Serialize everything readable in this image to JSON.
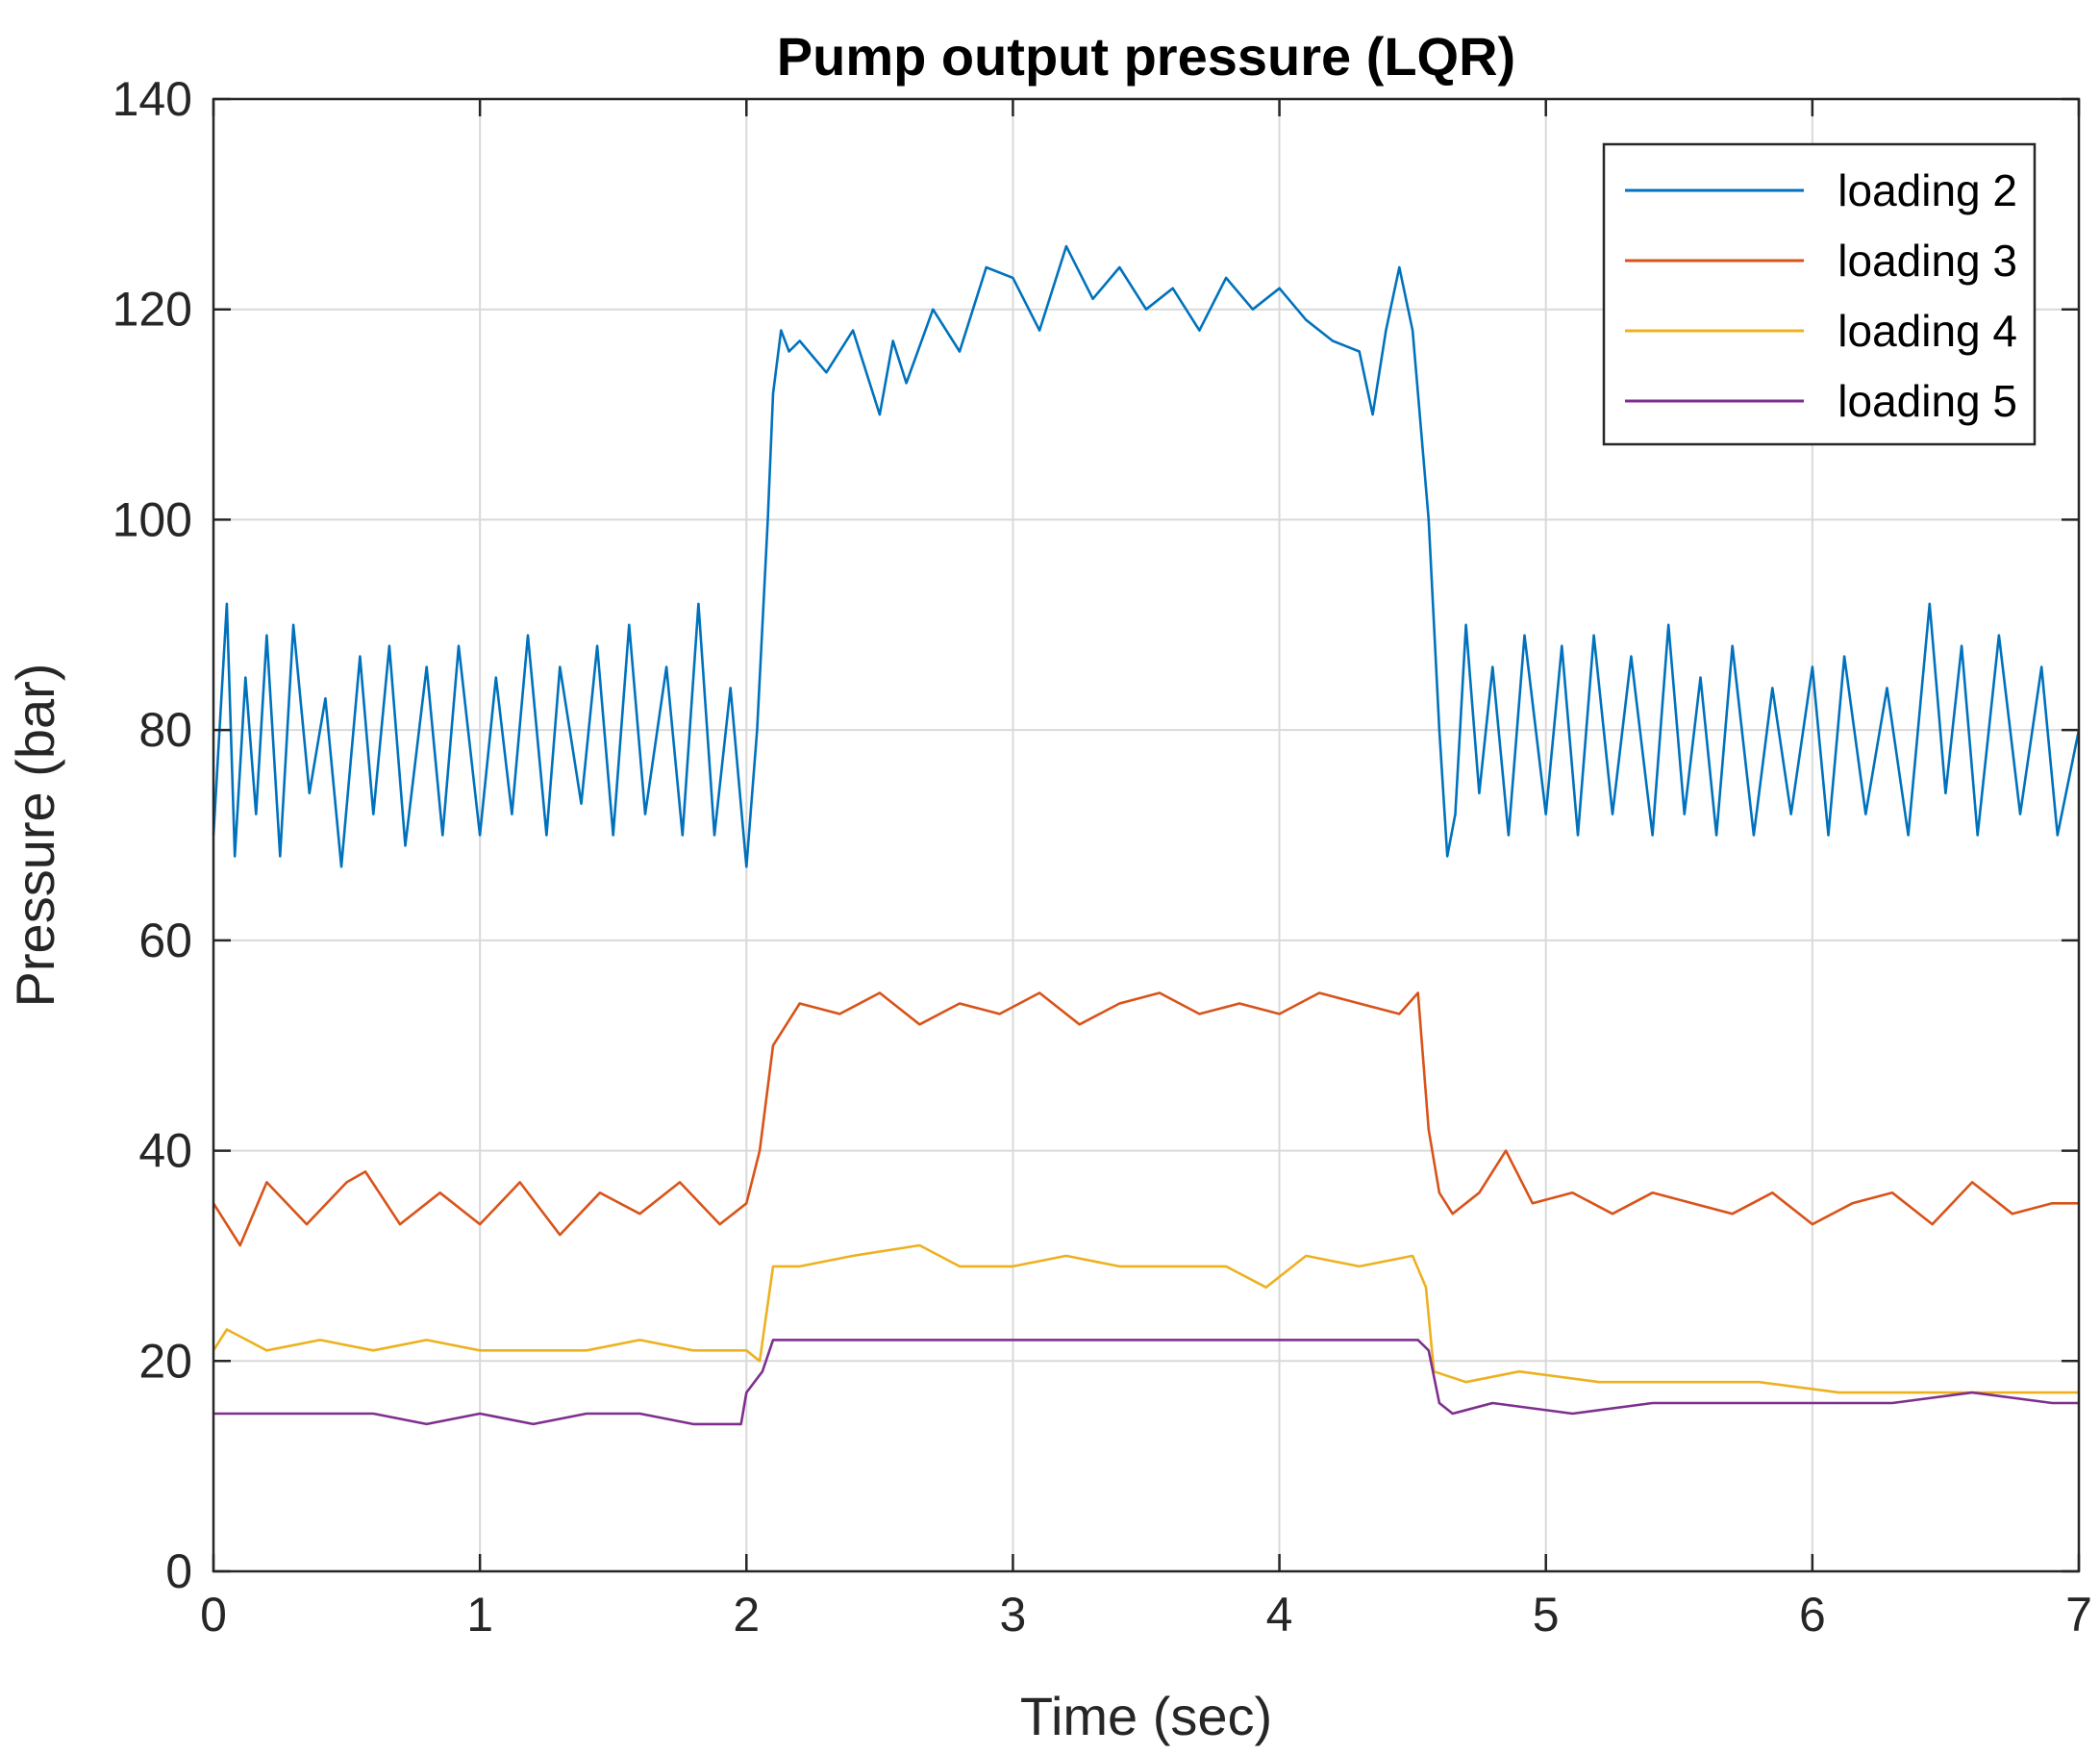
{
  "chart_data": {
    "type": "line",
    "title": "Pump output pressure (LQR)",
    "xlabel": "Time (sec)",
    "ylabel": "Pressure (bar)",
    "xlim": [
      0,
      7
    ],
    "ylim": [
      0,
      140
    ],
    "xticks": [
      0,
      1,
      2,
      3,
      4,
      5,
      6,
      7
    ],
    "yticks": [
      0,
      20,
      40,
      60,
      80,
      100,
      120,
      140
    ],
    "xtick_labels": [
      "0",
      "1",
      "2",
      "3",
      "4",
      "5",
      "6",
      "7"
    ],
    "ytick_labels": [
      "0",
      "20",
      "40",
      "60",
      "80",
      "100",
      "120",
      "140"
    ],
    "grid": true,
    "legend_position": "top-right",
    "series": [
      {
        "name": "loading 2",
        "color": "#0072BD",
        "x": [
          0,
          0.05,
          0.08,
          0.12,
          0.16,
          0.2,
          0.25,
          0.3,
          0.36,
          0.42,
          0.48,
          0.55,
          0.6,
          0.66,
          0.72,
          0.8,
          0.86,
          0.92,
          1.0,
          1.06,
          1.12,
          1.18,
          1.25,
          1.3,
          1.38,
          1.44,
          1.5,
          1.56,
          1.62,
          1.7,
          1.76,
          1.82,
          1.88,
          1.94,
          2.0,
          2.04,
          2.08,
          2.1,
          2.13,
          2.16,
          2.2,
          2.3,
          2.4,
          2.5,
          2.55,
          2.6,
          2.7,
          2.8,
          2.9,
          3.0,
          3.1,
          3.2,
          3.3,
          3.4,
          3.5,
          3.6,
          3.7,
          3.8,
          3.9,
          4.0,
          4.1,
          4.2,
          4.3,
          4.35,
          4.4,
          4.45,
          4.5,
          4.52,
          4.56,
          4.6,
          4.63,
          4.66,
          4.7,
          4.75,
          4.8,
          4.86,
          4.92,
          5.0,
          5.06,
          5.12,
          5.18,
          5.25,
          5.32,
          5.4,
          5.46,
          5.52,
          5.58,
          5.64,
          5.7,
          5.78,
          5.85,
          5.92,
          6.0,
          6.06,
          6.12,
          6.2,
          6.28,
          6.36,
          6.44,
          6.5,
          6.56,
          6.62,
          6.7,
          6.78,
          6.86,
          6.92,
          7.0
        ],
        "y": [
          70,
          92,
          68,
          85,
          72,
          89,
          68,
          90,
          74,
          83,
          67,
          87,
          72,
          88,
          69,
          86,
          70,
          88,
          70,
          85,
          72,
          89,
          70,
          86,
          73,
          88,
          70,
          90,
          72,
          86,
          70,
          92,
          70,
          84,
          67,
          80,
          100,
          112,
          118,
          116,
          117,
          114,
          118,
          110,
          117,
          113,
          120,
          116,
          124,
          123,
          118,
          126,
          121,
          124,
          120,
          122,
          118,
          123,
          120,
          122,
          119,
          117,
          116,
          110,
          118,
          124,
          118,
          112,
          100,
          80,
          68,
          72,
          90,
          74,
          86,
          70,
          89,
          72,
          88,
          70,
          89,
          72,
          87,
          70,
          90,
          72,
          85,
          70,
          88,
          70,
          84,
          72,
          86,
          70,
          87,
          72,
          84,
          70,
          92,
          74,
          88,
          70,
          89,
          72,
          86,
          70,
          80
        ]
      },
      {
        "name": "loading 3",
        "color": "#D95319",
        "x": [
          0,
          0.1,
          0.2,
          0.35,
          0.5,
          0.57,
          0.7,
          0.85,
          1.0,
          1.15,
          1.3,
          1.45,
          1.6,
          1.75,
          1.9,
          2.0,
          2.05,
          2.1,
          2.2,
          2.35,
          2.5,
          2.65,
          2.8,
          2.95,
          3.1,
          3.25,
          3.4,
          3.55,
          3.7,
          3.85,
          4.0,
          4.15,
          4.3,
          4.45,
          4.52,
          4.56,
          4.6,
          4.65,
          4.75,
          4.85,
          4.95,
          5.1,
          5.25,
          5.4,
          5.55,
          5.7,
          5.85,
          6.0,
          6.15,
          6.3,
          6.45,
          6.6,
          6.75,
          6.9,
          7.0
        ],
        "y": [
          35,
          31,
          37,
          33,
          37,
          38,
          33,
          36,
          33,
          37,
          32,
          36,
          34,
          37,
          33,
          35,
          40,
          50,
          54,
          53,
          55,
          52,
          54,
          53,
          55,
          52,
          54,
          55,
          53,
          54,
          53,
          55,
          54,
          53,
          55,
          42,
          36,
          34,
          36,
          40,
          35,
          36,
          34,
          36,
          35,
          34,
          36,
          33,
          35,
          36,
          33,
          37,
          34,
          35,
          35
        ]
      },
      {
        "name": "loading 4",
        "color": "#EDB120",
        "x": [
          0,
          0.05,
          0.2,
          0.4,
          0.6,
          0.8,
          1.0,
          1.2,
          1.4,
          1.6,
          1.8,
          2.0,
          2.05,
          2.1,
          2.2,
          2.4,
          2.65,
          2.8,
          3.0,
          3.2,
          3.4,
          3.6,
          3.8,
          3.95,
          4.1,
          4.3,
          4.5,
          4.55,
          4.58,
          4.7,
          4.9,
          5.2,
          5.5,
          5.8,
          6.1,
          6.4,
          6.7,
          7.0
        ],
        "y": [
          21,
          23,
          21,
          22,
          21,
          22,
          21,
          21,
          21,
          22,
          21,
          21,
          20,
          29,
          29,
          30,
          31,
          29,
          29,
          30,
          29,
          29,
          29,
          27,
          30,
          29,
          30,
          27,
          19,
          18,
          19,
          18,
          18,
          18,
          17,
          17,
          17,
          17
        ]
      },
      {
        "name": "loading 5",
        "color": "#7E2F8E",
        "x": [
          0,
          0.2,
          0.4,
          0.6,
          0.8,
          1.0,
          1.2,
          1.4,
          1.6,
          1.8,
          1.98,
          2.0,
          2.06,
          2.1,
          2.3,
          2.6,
          2.9,
          3.2,
          3.5,
          3.8,
          4.1,
          4.4,
          4.52,
          4.56,
          4.6,
          4.65,
          4.8,
          5.1,
          5.4,
          5.7,
          6.0,
          6.3,
          6.6,
          6.9,
          7.0
        ],
        "y": [
          15,
          15,
          15,
          15,
          14,
          15,
          14,
          15,
          15,
          14,
          14,
          17,
          19,
          22,
          22,
          22,
          22,
          22,
          22,
          22,
          22,
          22,
          22,
          21,
          16,
          15,
          16,
          15,
          16,
          16,
          16,
          16,
          17,
          16,
          16
        ]
      }
    ]
  }
}
